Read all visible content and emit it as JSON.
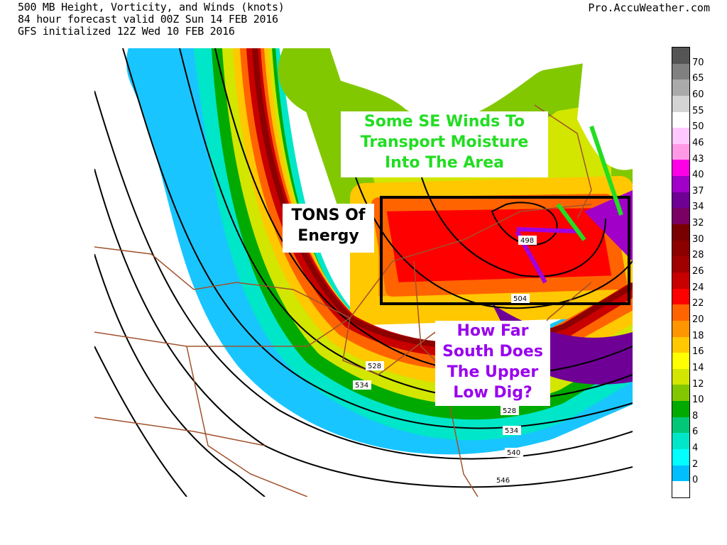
{
  "header": {
    "line1": "500 MB Height, Vorticity, and Winds (knots)",
    "line2": "84 hour forecast valid 00Z Sun 14 FEB 2016",
    "line3": "GFS initialized 12Z Wed 10 FEB 2016",
    "site": "Pro.AccuWeather.com"
  },
  "colorbar": {
    "labels": [
      "70",
      "65",
      "60",
      "55",
      "50",
      "46",
      "43",
      "40",
      "37",
      "34",
      "32",
      "30",
      "28",
      "26",
      "24",
      "22",
      "20",
      "18",
      "16",
      "14",
      "12",
      "10",
      "8",
      "6",
      "4",
      "2",
      "0"
    ],
    "colors": [
      "#555555",
      "#808080",
      "#aaaaaa",
      "#d4d4d4",
      "#ffffff",
      "#ffc8ff",
      "#ff99e6",
      "#ff00e6",
      "#a000c8",
      "#6e0096",
      "#7a0064",
      "#780000",
      "#8c0000",
      "#a00000",
      "#c80000",
      "#ff0000",
      "#ff6400",
      "#ff9600",
      "#ffc800",
      "#ffff00",
      "#d2e600",
      "#82c800",
      "#00aa00",
      "#00c878",
      "#00e6c8",
      "#00ffff",
      "#00bfff",
      "#ffffff"
    ]
  },
  "annotations": {
    "moisture": {
      "text": [
        "Some SE Winds To",
        "Transport Moisture",
        "Into The Area"
      ],
      "color": "#22dd22"
    },
    "energy": {
      "text": [
        "TONS Of",
        "Energy"
      ],
      "color": "#000000"
    },
    "dig": {
      "text": [
        "How Far",
        "South Does",
        "The Upper",
        "Low Dig?"
      ],
      "color": "#9900ee"
    }
  },
  "contour_labels": [
    "528",
    "534",
    "528",
    "534",
    "540",
    "546",
    "504",
    "498"
  ]
}
